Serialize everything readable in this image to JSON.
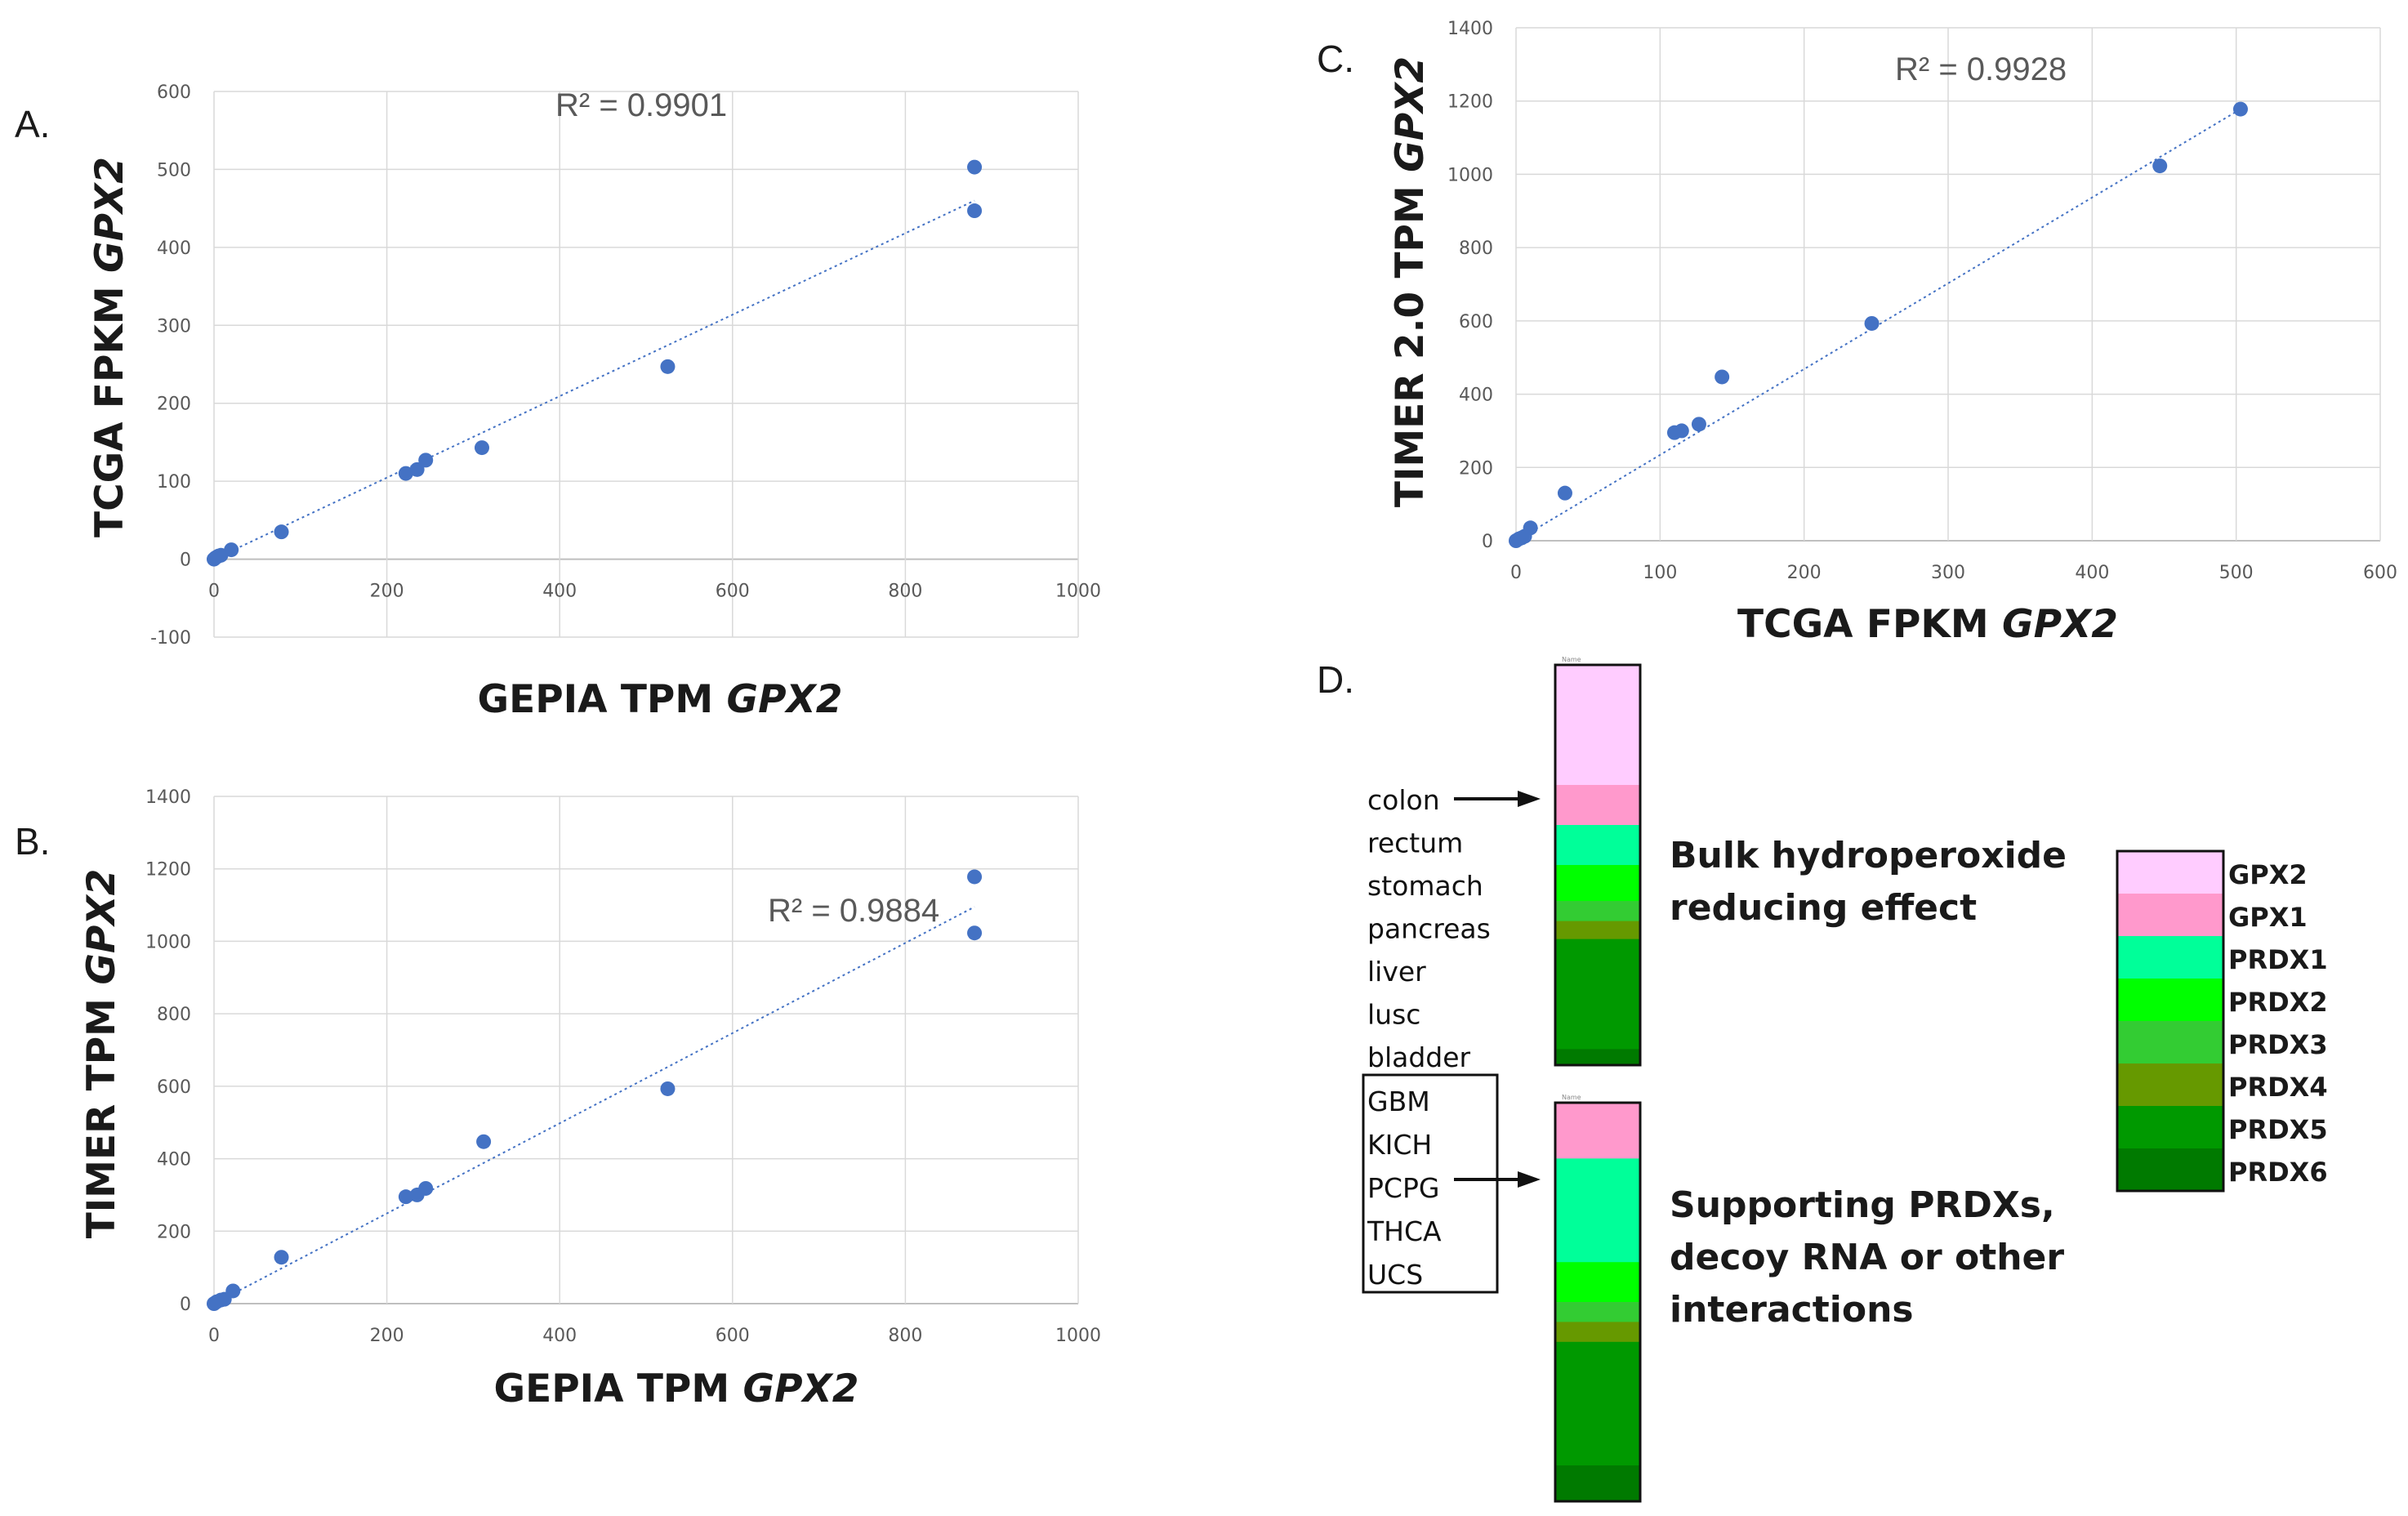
{
  "panels": {
    "a": "A.",
    "b": "B.",
    "c": "C.",
    "d": "D."
  },
  "chart_data": [
    {
      "id": "A",
      "type": "scatter",
      "xlabel_plain": "GEPIA TPM ",
      "xlabel_italic": "GPX2",
      "ylabel_plain": "TCGA FPKM ",
      "ylabel_italic": "GPX2",
      "xlim": [
        0,
        1000
      ],
      "ylim": [
        -100,
        600
      ],
      "xticks": [
        0,
        200,
        400,
        600,
        800,
        1000
      ],
      "yticks": [
        -100,
        0,
        100,
        200,
        300,
        400,
        500,
        600
      ],
      "grid": true,
      "r2_label": "R² = 0.9901",
      "trendline": {
        "x": [
          0,
          880
        ],
        "y": [
          0,
          460
        ]
      },
      "points": {
        "x": [
          0,
          2,
          5,
          8,
          20,
          78,
          222,
          235,
          245,
          310,
          525,
          880,
          880
        ],
        "y": [
          0,
          2,
          4,
          5,
          12,
          35,
          110,
          115,
          127,
          143,
          247,
          503,
          447
        ]
      },
      "color": "#4472c4"
    },
    {
      "id": "B",
      "type": "scatter",
      "xlabel_plain": "GEPIA TPM ",
      "xlabel_italic": "GPX2",
      "ylabel_plain": "TIMER TPM ",
      "ylabel_italic": "GPX2",
      "xlim": [
        0,
        1000
      ],
      "ylim": [
        0,
        1400
      ],
      "xticks": [
        0,
        200,
        400,
        600,
        800,
        1000
      ],
      "yticks": [
        0,
        200,
        400,
        600,
        800,
        1000,
        1200,
        1400
      ],
      "grid": true,
      "r2_label": "R² = 0.9884",
      "trendline": {
        "x": [
          0,
          880
        ],
        "y": [
          0,
          1095
        ]
      },
      "points": {
        "x": [
          0,
          3,
          8,
          12,
          22,
          78,
          222,
          235,
          245,
          312,
          525,
          880,
          880
        ],
        "y": [
          0,
          5,
          10,
          12,
          35,
          128,
          295,
          300,
          318,
          447,
          593,
          1178,
          1023
        ]
      },
      "color": "#4472c4"
    },
    {
      "id": "C",
      "type": "scatter",
      "xlabel_plain": "TCGA FPKM ",
      "xlabel_italic": "GPX2",
      "ylabel_plain": "TIMER 2.0 TPM ",
      "ylabel_italic": "GPX2",
      "xlim": [
        0,
        600
      ],
      "ylim": [
        0,
        1400
      ],
      "xticks": [
        0,
        100,
        200,
        300,
        400,
        500,
        600
      ],
      "yticks": [
        0,
        200,
        400,
        600,
        800,
        1000,
        1200,
        1400
      ],
      "grid": true,
      "r2_label": "R² = 0.9928",
      "trendline": {
        "x": [
          0,
          503
        ],
        "y": [
          0,
          1178
        ]
      },
      "points": {
        "x": [
          0,
          2,
          4,
          6,
          10,
          34,
          110,
          115,
          127,
          143,
          247,
          447,
          503
        ],
        "y": [
          0,
          5,
          8,
          12,
          35,
          130,
          295,
          300,
          318,
          447,
          593,
          1023,
          1178
        ]
      },
      "color": "#4472c4"
    }
  ],
  "panel_d": {
    "tissues_top": [
      "colon",
      "rectum",
      "stomach",
      "pancreas",
      "liver",
      "lusc",
      "bladder"
    ],
    "tissues_boxed": [
      "GBM",
      "KICH",
      "PCPG",
      "THCA",
      "UCS"
    ],
    "text_top": [
      "Bulk hydroperoxide",
      "reducing effect"
    ],
    "text_bottom": [
      "Supporting PRDXs,",
      "decoy RNA or other",
      "interactions"
    ],
    "bar_header": "Name",
    "bar_top": [
      {
        "gene": "GPX2",
        "share": 30
      },
      {
        "gene": "GPX1",
        "share": 10
      },
      {
        "gene": "PRDX1",
        "share": 10
      },
      {
        "gene": "PRDX2",
        "share": 9
      },
      {
        "gene": "PRDX3",
        "share": 5
      },
      {
        "gene": "PRDX4",
        "share": 4.5
      },
      {
        "gene": "PRDX5",
        "share": 27.5
      },
      {
        "gene": "PRDX6",
        "share": 4
      }
    ],
    "bar_bottom": [
      {
        "gene": "GPX1",
        "share": 14
      },
      {
        "gene": "PRDX1",
        "share": 26
      },
      {
        "gene": "PRDX2",
        "share": 10
      },
      {
        "gene": "PRDX3",
        "share": 5
      },
      {
        "gene": "PRDX4",
        "share": 5
      },
      {
        "gene": "PRDX5",
        "share": 31
      },
      {
        "gene": "PRDX6",
        "share": 9
      }
    ],
    "legend": [
      {
        "gene": "GPX2",
        "color": "#ffccff"
      },
      {
        "gene": "GPX1",
        "color": "#ff99cc"
      },
      {
        "gene": "PRDX1",
        "color": "#00ff99"
      },
      {
        "gene": "PRDX2",
        "color": "#00ff00"
      },
      {
        "gene": "PRDX3",
        "color": "#33cc33"
      },
      {
        "gene": "PRDX4",
        "color": "#669900"
      },
      {
        "gene": "PRDX5",
        "color": "#009900"
      },
      {
        "gene": "PRDX6",
        "color": "#007a00"
      }
    ]
  }
}
